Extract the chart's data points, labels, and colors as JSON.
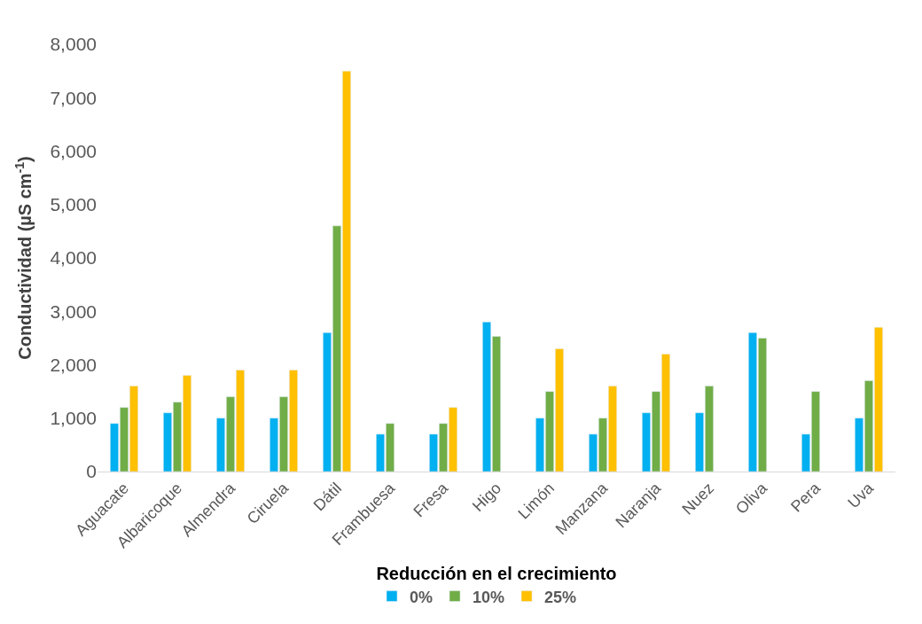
{
  "chart_data": {
    "type": "bar",
    "ylabel": "Conductividad (µS cm$^{-1}$)",
    "legend_title": "Reducción en el crecimiento",
    "legend": "bottom",
    "categories": [
      "Aguacate",
      "Albaricoque",
      "Almendra",
      "Ciruela",
      "Dátil",
      "Frambuesa",
      "Fresa",
      "Higo",
      "Limón",
      "Manzana",
      "Naranja",
      "Nuez",
      "Oliva",
      "Pera",
      "Uva"
    ],
    "series": [
      {
        "name": "0%",
        "color": "#00b0f0",
        "values": [
          900,
          1100,
          1000,
          1000,
          2600,
          700,
          700,
          2800,
          1000,
          700,
          1100,
          1100,
          2600,
          700,
          1000
        ]
      },
      {
        "name": "10%",
        "color": "#70ad47",
        "values": [
          1200,
          1300,
          1400,
          1400,
          4600,
          900,
          900,
          2530,
          1500,
          1000,
          1500,
          1600,
          2500,
          1500,
          1700
        ]
      },
      {
        "name": "25%",
        "color": "#ffc000",
        "values": [
          1600,
          1800,
          1900,
          1900,
          7500,
          null,
          1200,
          null,
          2300,
          1600,
          2200,
          null,
          null,
          null,
          2700
        ]
      }
    ],
    "ylim": [
      0,
      8000
    ],
    "yticks": [
      0,
      {
        "value": 1000,
        "label": "1,000"
      },
      {
        "value": 2000,
        "label": "2,000"
      },
      {
        "value": 3000,
        "label": "3,000"
      },
      {
        "value": 4000,
        "label": "4,000"
      },
      {
        "value": 5000,
        "label": "5,000"
      },
      {
        "value": 6000,
        "label": "6,000"
      },
      {
        "value": 7000,
        "label": "7,000"
      },
      {
        "value": 8000,
        "label": "8,000"
      }
    ]
  }
}
